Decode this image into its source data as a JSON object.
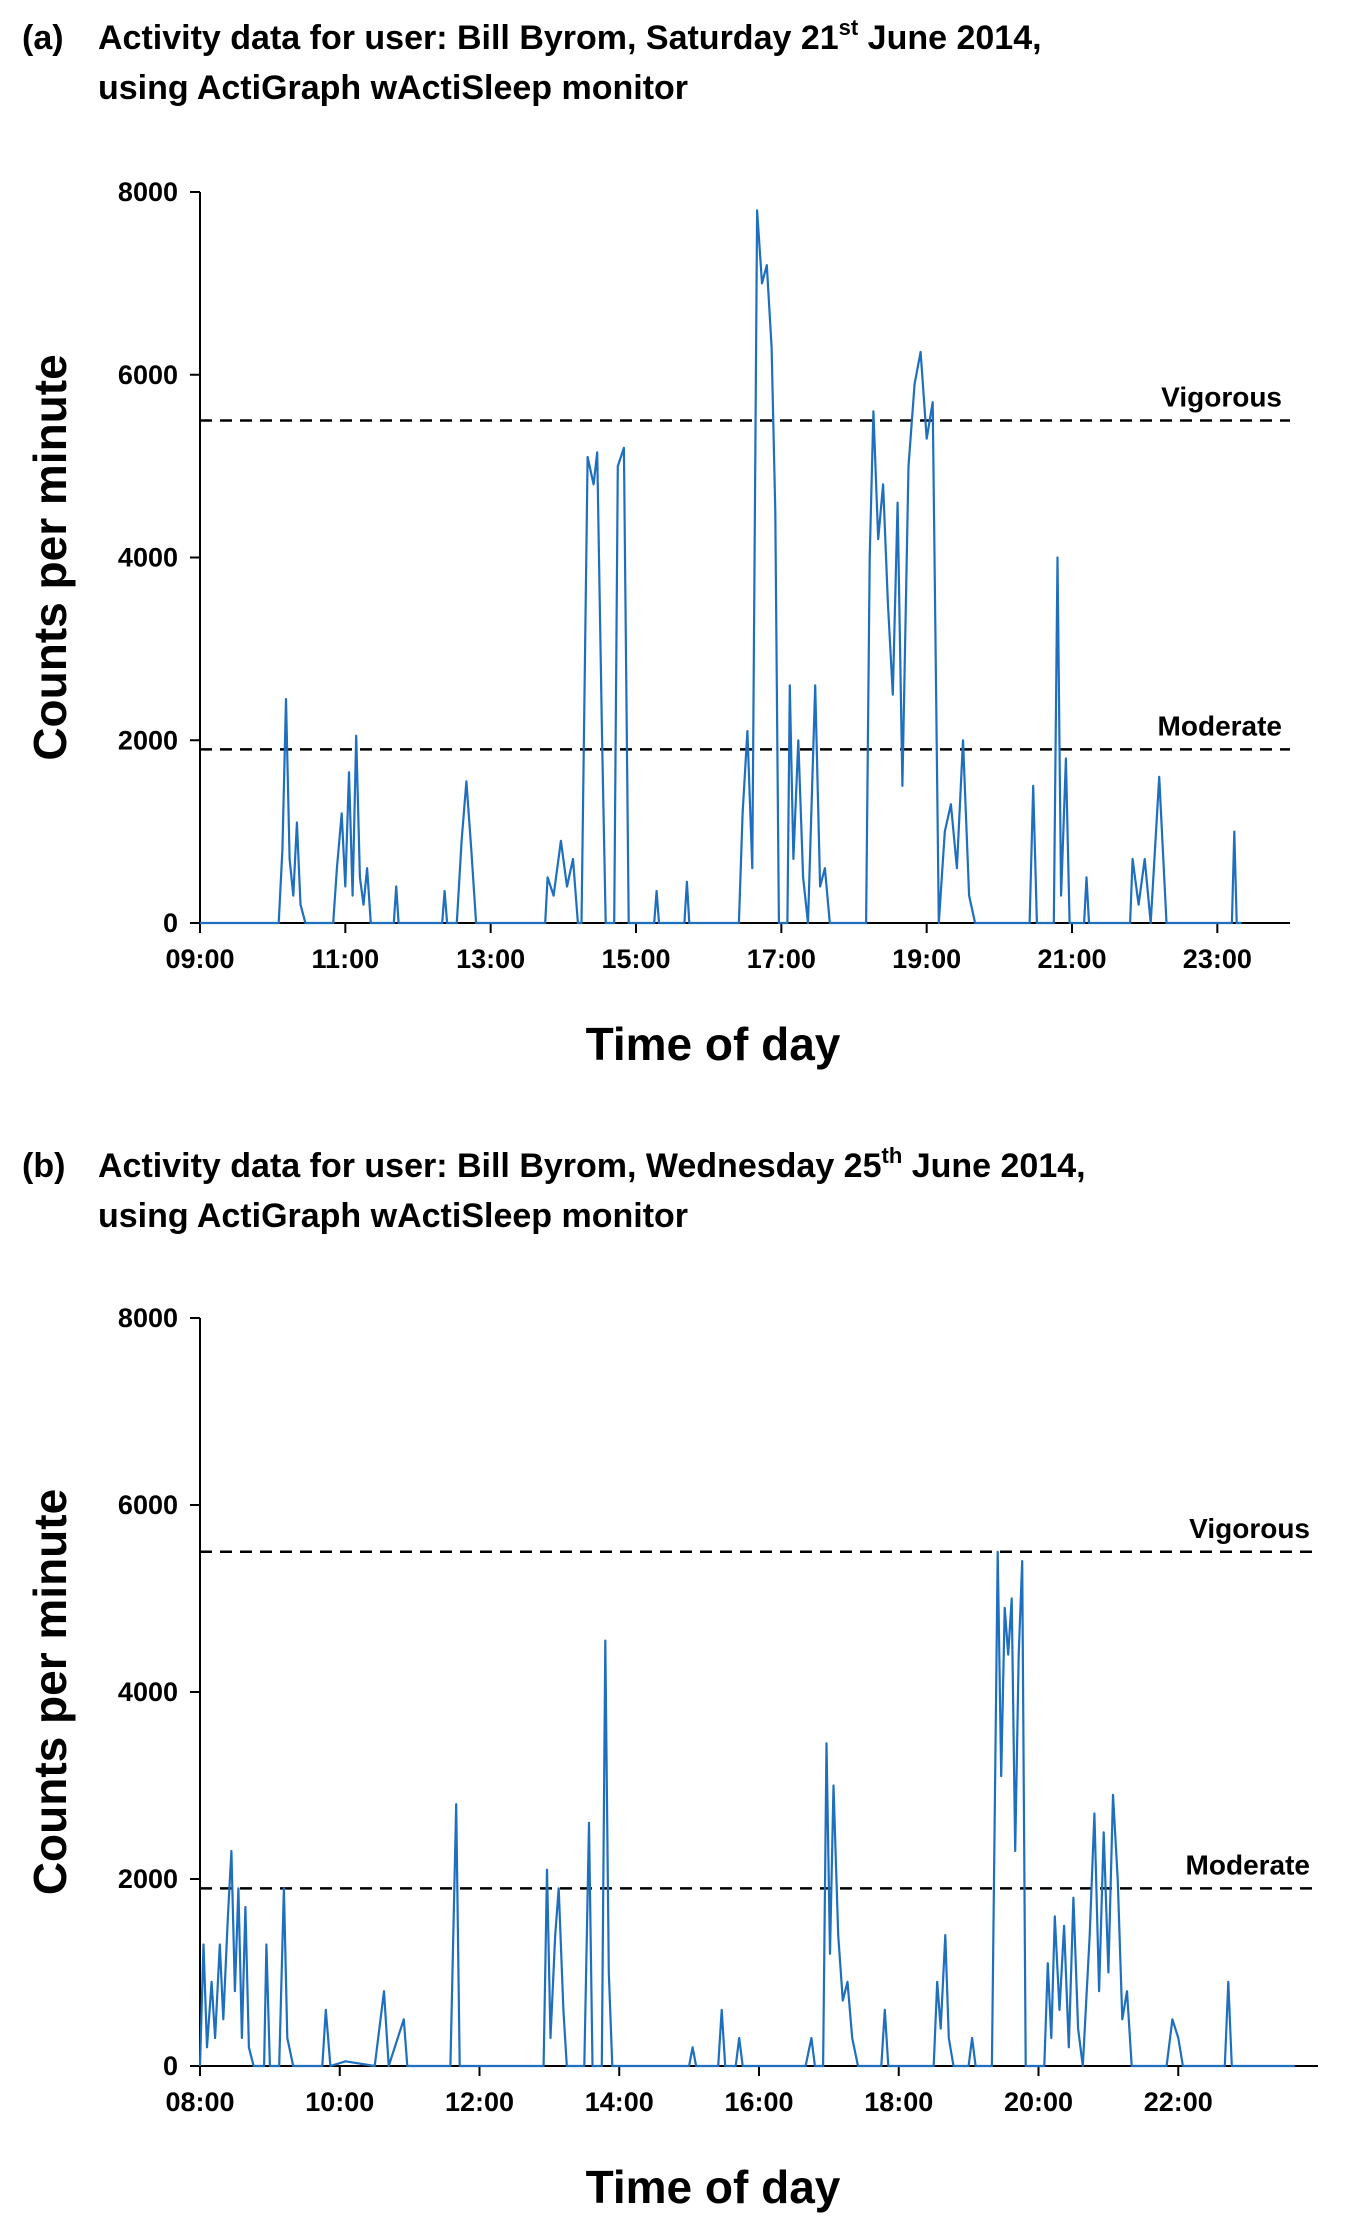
{
  "chart_data": [
    {
      "type": "line",
      "panel": "(a)",
      "title": {
        "before": "Activity data for user: Bill Byrom, Saturday 21",
        "sup": "st",
        "after": " June 2014,",
        "line2": "using ActiGraph wActiSleep monitor"
      },
      "x_label": "Time of day",
      "y_label": "Counts per minute",
      "color": "#1f6fbf",
      "xlim": [
        "09:00",
        "24:00"
      ],
      "xticks": [
        "09:00",
        "11:00",
        "13:00",
        "15:00",
        "17:00",
        "19:00",
        "21:00",
        "23:00"
      ],
      "ylim": [
        0,
        8000
      ],
      "yticks": [
        0,
        2000,
        4000,
        6000,
        8000
      ],
      "reference_lines": [
        {
          "label": "Vigorous",
          "value": 5500
        },
        {
          "label": "Moderate",
          "value": 1900
        }
      ],
      "x": [
        "09:00",
        "10:05",
        "10:08",
        "10:11",
        "10:14",
        "10:17",
        "10:20",
        "10:23",
        "10:27",
        "10:50",
        "10:53",
        "10:57",
        "11:00",
        "11:03",
        "11:06",
        "11:09",
        "11:12",
        "11:15",
        "11:18",
        "11:21",
        "11:40",
        "11:42",
        "11:44",
        "12:20",
        "12:22",
        "12:24",
        "12:32",
        "12:36",
        "12:40",
        "12:44",
        "12:48",
        "13:45",
        "13:47",
        "13:52",
        "13:58",
        "14:03",
        "14:08",
        "14:12",
        "14:15",
        "14:20",
        "14:25",
        "14:28",
        "14:32",
        "14:35",
        "14:42",
        "14:45",
        "14:50",
        "14:54",
        "15:15",
        "15:17",
        "15:19",
        "15:40",
        "15:42",
        "15:44",
        "16:25",
        "16:28",
        "16:32",
        "16:36",
        "16:40",
        "16:44",
        "16:48",
        "16:52",
        "16:55",
        "16:58",
        "17:05",
        "17:07",
        "17:10",
        "17:14",
        "17:18",
        "17:22",
        "17:28",
        "17:32",
        "17:36",
        "17:40",
        "18:10",
        "18:13",
        "18:16",
        "18:20",
        "18:24",
        "18:28",
        "18:32",
        "18:36",
        "18:40",
        "18:45",
        "18:50",
        "18:55",
        "19:00",
        "19:05",
        "19:10",
        "19:15",
        "19:20",
        "19:25",
        "19:30",
        "19:35",
        "19:40",
        "20:25",
        "20:28",
        "20:31",
        "20:45",
        "20:48",
        "20:51",
        "20:55",
        "20:58",
        "21:10",
        "21:12",
        "21:14",
        "21:48",
        "21:50",
        "21:55",
        "22:00",
        "22:05",
        "22:12",
        "22:18",
        "23:12",
        "23:14",
        "23:16",
        "23:20"
      ],
      "values": [
        0,
        0,
        800,
        2450,
        700,
        300,
        1100,
        200,
        0,
        0,
        600,
        1200,
        400,
        1650,
        300,
        2050,
        500,
        200,
        600,
        0,
        0,
        400,
        0,
        0,
        350,
        0,
        0,
        900,
        1550,
        800,
        0,
        0,
        500,
        300,
        900,
        400,
        700,
        0,
        0,
        5100,
        4800,
        5150,
        2000,
        0,
        0,
        5000,
        5200,
        0,
        0,
        350,
        0,
        0,
        450,
        0,
        0,
        1200,
        2100,
        600,
        7800,
        7000,
        7200,
        6300,
        4500,
        0,
        0,
        2600,
        700,
        2000,
        500,
        0,
        2600,
        400,
        600,
        0,
        0,
        4000,
        5600,
        4200,
        4800,
        3500,
        2500,
        4600,
        1500,
        5000,
        5900,
        6250,
        5300,
        5700,
        0,
        1000,
        1300,
        600,
        2000,
        300,
        0,
        0,
        1500,
        0,
        0,
        4000,
        300,
        1800,
        0,
        0,
        500,
        0,
        0,
        700,
        200,
        700,
        0,
        1600,
        0,
        0,
        1000,
        0,
        0
      ]
    },
    {
      "type": "line",
      "panel": "(b)",
      "title": {
        "before": "Activity data for user: Bill Byrom, Wednesday 25",
        "sup": "th",
        "after": " June 2014,",
        "line2": "using ActiGraph wActiSleep monitor"
      },
      "x_label": "Time of day",
      "y_label": "Counts per minute",
      "color": "#1f6fbf",
      "xlim": [
        "08:00",
        "24:00"
      ],
      "xticks": [
        "08:00",
        "10:00",
        "12:00",
        "14:00",
        "16:00",
        "18:00",
        "20:00",
        "22:00"
      ],
      "ylim": [
        0,
        8000
      ],
      "yticks": [
        0,
        2000,
        4000,
        6000,
        8000
      ],
      "reference_lines": [
        {
          "label": "Vigorous",
          "value": 5500
        },
        {
          "label": "Moderate",
          "value": 1900
        }
      ],
      "x": [
        "08:00",
        "08:03",
        "08:06",
        "08:10",
        "08:13",
        "08:17",
        "08:20",
        "08:24",
        "08:27",
        "08:30",
        "08:33",
        "08:36",
        "08:39",
        "08:42",
        "08:46",
        "08:55",
        "08:57",
        "09:00",
        "09:08",
        "09:12",
        "09:15",
        "09:20",
        "09:45",
        "09:48",
        "09:52",
        "10:05",
        "10:30",
        "10:38",
        "10:42",
        "10:55",
        "10:58",
        "11:35",
        "11:40",
        "11:43",
        "12:55",
        "12:58",
        "13:01",
        "13:05",
        "13:08",
        "13:12",
        "13:15",
        "13:30",
        "13:34",
        "13:37",
        "13:45",
        "13:48",
        "13:51",
        "13:54",
        "15:00",
        "15:03",
        "15:06",
        "15:25",
        "15:28",
        "15:31",
        "15:40",
        "15:43",
        "15:46",
        "16:40",
        "16:45",
        "16:48",
        "16:55",
        "16:58",
        "17:01",
        "17:04",
        "17:08",
        "17:12",
        "17:16",
        "17:20",
        "17:25",
        "17:45",
        "17:48",
        "17:51",
        "18:30",
        "18:33",
        "18:36",
        "18:40",
        "18:43",
        "18:47",
        "19:00",
        "19:03",
        "19:06",
        "19:20",
        "19:25",
        "19:28",
        "19:31",
        "19:34",
        "19:37",
        "19:40",
        "19:43",
        "19:46",
        "19:49",
        "20:05",
        "20:08",
        "20:11",
        "20:14",
        "20:18",
        "20:22",
        "20:26",
        "20:30",
        "20:34",
        "20:38",
        "20:44",
        "20:48",
        "20:52",
        "20:56",
        "21:00",
        "21:04",
        "21:08",
        "21:12",
        "21:16",
        "21:20",
        "21:50",
        "21:55",
        "22:00",
        "22:04",
        "22:40",
        "22:43",
        "22:46",
        "23:40"
      ],
      "values": [
        0,
        1300,
        200,
        900,
        300,
        1300,
        500,
        1600,
        2300,
        800,
        1900,
        300,
        1700,
        200,
        0,
        0,
        1300,
        0,
        0,
        1900,
        300,
        0,
        0,
        600,
        0,
        50,
        0,
        800,
        0,
        500,
        0,
        0,
        2800,
        0,
        0,
        2100,
        300,
        1400,
        1900,
        600,
        0,
        0,
        2600,
        0,
        0,
        4550,
        1000,
        0,
        0,
        200,
        0,
        0,
        600,
        0,
        0,
        300,
        0,
        0,
        300,
        0,
        0,
        3450,
        1200,
        3000,
        1400,
        700,
        900,
        300,
        0,
        0,
        600,
        0,
        0,
        900,
        400,
        1400,
        300,
        0,
        0,
        300,
        0,
        0,
        5500,
        3100,
        4900,
        4400,
        5000,
        2300,
        4400,
        5400,
        0,
        0,
        1100,
        300,
        1600,
        600,
        1500,
        200,
        1800,
        400,
        0,
        1400,
        2700,
        800,
        2500,
        1000,
        2900,
        2000,
        500,
        800,
        0,
        0,
        500,
        300,
        0,
        0,
        900,
        0,
        0
      ]
    }
  ]
}
